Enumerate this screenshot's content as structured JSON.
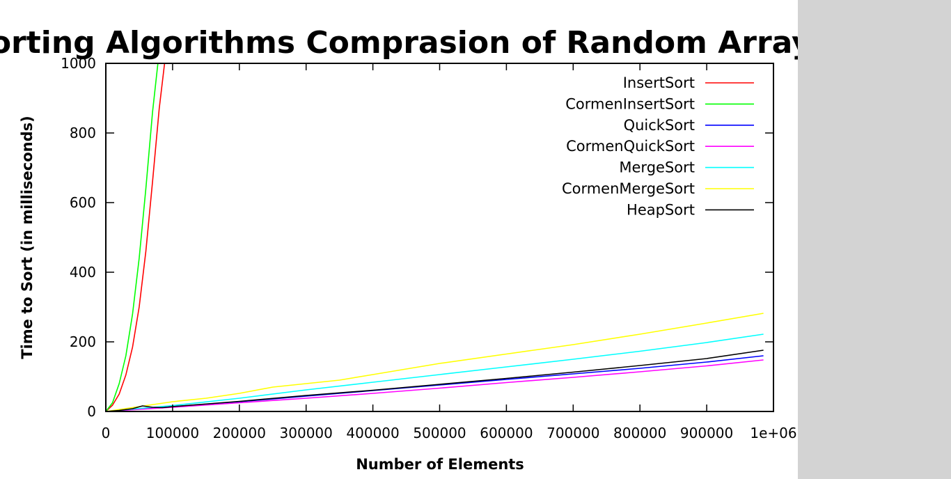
{
  "chart_data": {
    "type": "line",
    "title": "Sorting Algorithms Comprasion of Random Arrays",
    "xlabel": "Number of Elements",
    "ylabel": "Time to Sort (in milliseconds)",
    "xlim": [
      0,
      1000000
    ],
    "ylim": [
      0,
      1000
    ],
    "xticks": [
      "0",
      "100000",
      "200000",
      "300000",
      "400000",
      "500000",
      "600000",
      "700000",
      "800000",
      "900000",
      "1e+06"
    ],
    "yticks": [
      "0",
      "200",
      "400",
      "600",
      "800",
      "1000"
    ],
    "legend_position": "top-right",
    "grid": false,
    "series": [
      {
        "name": "InsertSort",
        "color": "#ff0000",
        "x": [
          0,
          10000,
          20000,
          30000,
          40000,
          50000,
          60000,
          70000,
          80000,
          88000,
          92000
        ],
        "y": [
          0,
          18,
          50,
          105,
          185,
          300,
          460,
          660,
          870,
          1000,
          1100
        ]
      },
      {
        "name": "CormenInsertSort",
        "color": "#00ff00",
        "x": [
          0,
          10000,
          20000,
          30000,
          40000,
          50000,
          60000,
          70000,
          78000,
          82000
        ],
        "y": [
          0,
          25,
          80,
          160,
          280,
          440,
          640,
          860,
          1000,
          1100
        ]
      },
      {
        "name": "QuickSort",
        "color": "#0000ff",
        "x": [
          0,
          100000,
          200000,
          300000,
          400000,
          500000,
          600000,
          700000,
          800000,
          900000,
          985000
        ],
        "y": [
          0,
          14,
          28,
          44,
          60,
          76,
          92,
          108,
          124,
          142,
          160
        ]
      },
      {
        "name": "CormenQuickSort",
        "color": "#ff00ff",
        "x": [
          0,
          100000,
          200000,
          300000,
          400000,
          500000,
          600000,
          700000,
          800000,
          900000,
          985000
        ],
        "y": [
          0,
          12,
          25,
          38,
          52,
          67,
          83,
          98,
          114,
          131,
          148
        ]
      },
      {
        "name": "MergeSort",
        "color": "#00ffff",
        "x": [
          0,
          100000,
          200000,
          300000,
          400000,
          500000,
          600000,
          700000,
          800000,
          900000,
          985000
        ],
        "y": [
          0,
          17,
          38,
          62,
          84,
          106,
          128,
          150,
          173,
          198,
          222
        ]
      },
      {
        "name": "CormenMergeSort",
        "color": "#ffff00",
        "x": [
          0,
          100000,
          150000,
          200000,
          250000,
          300000,
          350000,
          400000,
          500000,
          600000,
          700000,
          800000,
          900000,
          985000
        ],
        "y": [
          0,
          28,
          38,
          52,
          70,
          80,
          90,
          106,
          138,
          165,
          192,
          222,
          254,
          282
        ]
      },
      {
        "name": "HeapSort",
        "color": "#000000",
        "x": [
          0,
          20000,
          40000,
          55000,
          70000,
          85000,
          100000,
          200000,
          300000,
          400000,
          500000,
          600000,
          700000,
          800000,
          900000,
          985000
        ],
        "y": [
          0,
          3,
          8,
          16,
          12,
          11,
          14,
          29,
          46,
          61,
          78,
          95,
          113,
          132,
          152,
          176
        ]
      }
    ]
  }
}
